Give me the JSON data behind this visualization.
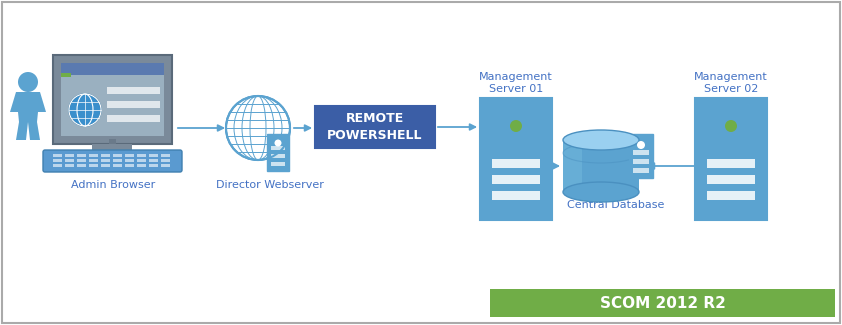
{
  "bg_color": "#ffffff",
  "border_color": "#aaaaaa",
  "arrow_color": "#5ba3d0",
  "box_blue": "#3b5ea6",
  "server_blue": "#5ba3d0",
  "server_light": "#7bbfe0",
  "green_bar_color": "#70ad47",
  "text_color_blue": "#4472c4",
  "text_color_white": "#ffffff",
  "monitor_body": "#808080",
  "monitor_screen": "#b0b8c0",
  "monitor_frame": "#5a7090",
  "keyboard_color": "#5a90c0",
  "keyboard_white": "#d0e8ff",
  "person_color": "#5ba3d0",
  "globe_color": "#5ba3d0",
  "globe_bg": "#d6eaf8",
  "scom_label": "SCOM 2012 R2",
  "remote_label": "REMOTE\nPOWERSHELL",
  "admin_label": "Admin Browser",
  "director_label": "Director Webserver",
  "mgmt01_label": "Management\nServer 01",
  "mgmt02_label": "Management\nServer 02",
  "central_db_label": "Central Database",
  "figw": 8.42,
  "figh": 3.25,
  "dpi": 100
}
